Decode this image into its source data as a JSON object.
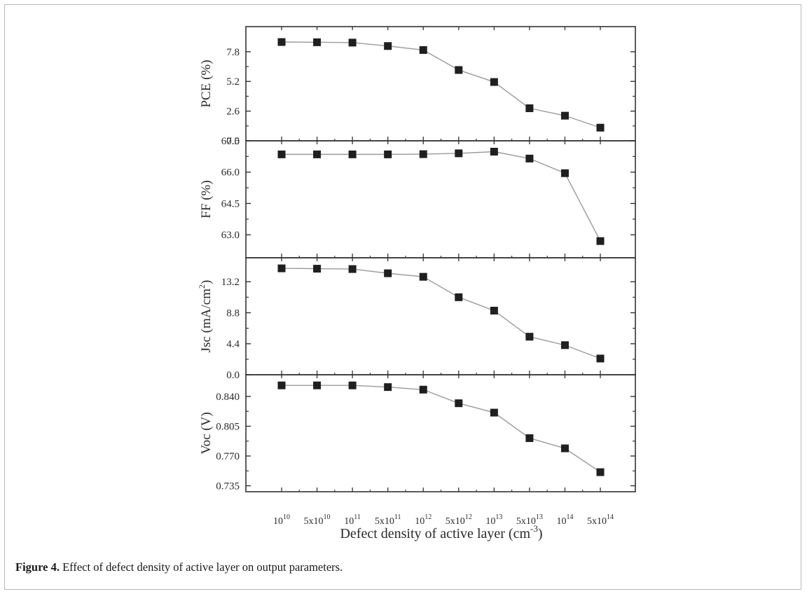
{
  "caption": {
    "label": "Figure 4.",
    "text": " Effect of defect density of active layer on output parameters."
  },
  "chart_data": {
    "type": "line",
    "shared_x": {
      "label_main": "Defect density  of  active layer (cm",
      "label_sup": "-3",
      "label_end": ")",
      "categories": [
        {
          "base": "10",
          "sup": "10"
        },
        {
          "base": "5x10",
          "sup": "10"
        },
        {
          "base": "10",
          "sup": "11"
        },
        {
          "base": "5x10",
          "sup": "11"
        },
        {
          "base": "10",
          "sup": "12"
        },
        {
          "base": "5x10",
          "sup": "12"
        },
        {
          "base": "10",
          "sup": "13"
        },
        {
          "base": "5x10",
          "sup": "13"
        },
        {
          "base": "10",
          "sup": "14"
        },
        {
          "base": "5x10",
          "sup": "14"
        }
      ]
    },
    "panels": [
      {
        "ylabel": "PCE (%)",
        "ylabel_sup": "",
        "ylabel_end": "",
        "ylim": [
          0.0,
          10.0
        ],
        "yticks": [
          0.0,
          2.6,
          5.2,
          7.8
        ],
        "ytick_labels": [
          "0.0",
          "2.6",
          "5.2",
          "7.8"
        ],
        "values": [
          8.65,
          8.63,
          8.6,
          8.3,
          7.95,
          6.2,
          5.15,
          2.85,
          2.2,
          1.15
        ]
      },
      {
        "ylabel": "FF (%)",
        "ylabel_sup": "",
        "ylabel_end": "",
        "ylim": [
          61.9,
          67.5
        ],
        "yticks": [
          63.0,
          64.5,
          66.0,
          67.5
        ],
        "ytick_labels": [
          "63.0",
          "64.5",
          "66.0",
          "67.5"
        ],
        "values": [
          66.85,
          66.85,
          66.85,
          66.85,
          66.86,
          66.9,
          66.98,
          66.65,
          65.95,
          62.7
        ]
      },
      {
        "ylabel": "Jsc (mA/cm",
        "ylabel_sup": "2",
        "ylabel_end": ")",
        "ylim": [
          0.0,
          16.6
        ],
        "yticks": [
          0.0,
          4.4,
          8.8,
          13.2
        ],
        "ytick_labels": [
          "0.0",
          "4.4",
          "8.8",
          "13.2"
        ],
        "values": [
          15.1,
          15.05,
          15.0,
          14.4,
          13.9,
          11.0,
          9.1,
          5.4,
          4.2,
          2.3
        ]
      },
      {
        "ylabel": "Voc (V)",
        "ylabel_sup": "",
        "ylabel_end": "",
        "ylim": [
          0.728,
          0.8655
        ],
        "yticks": [
          0.735,
          0.77,
          0.805,
          0.84
        ],
        "ytick_labels": [
          "0.735",
          "0.770",
          "0.805",
          "0.840"
        ],
        "values": [
          0.853,
          0.853,
          0.853,
          0.851,
          0.848,
          0.832,
          0.821,
          0.791,
          0.779,
          0.751
        ]
      }
    ],
    "grid": false,
    "legend": "none",
    "colors": {
      "marker": "#1f1f1f",
      "line": "#9a9a9a",
      "axis": "#333333"
    }
  }
}
